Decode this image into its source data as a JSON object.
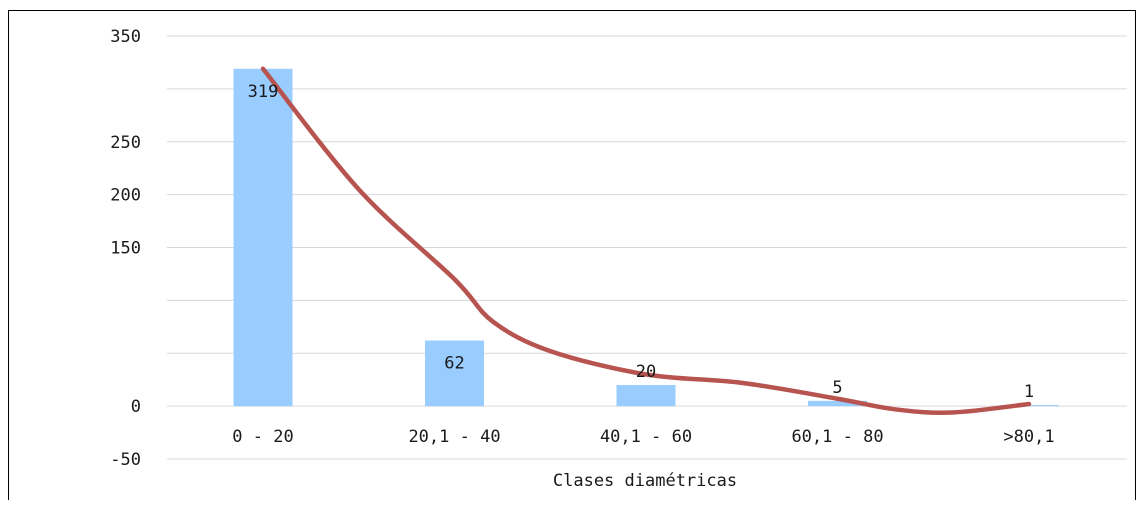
{
  "chart_data": {
    "type": "bar",
    "categories": [
      "0 - 20",
      "20,1 - 40",
      "40,1 - 60",
      "60,1 - 80",
      ">80,1"
    ],
    "values": [
      319,
      62,
      20,
      5,
      1
    ],
    "value_labels": [
      "319",
      "62",
      "20",
      "5",
      "1"
    ],
    "y_ticks": [
      "350",
      "250",
      "200",
      "150",
      "0",
      "-50"
    ],
    "y_tick_values": [
      350,
      250,
      200,
      150,
      0,
      -50
    ],
    "gridlines": [
      -50,
      0,
      50,
      100,
      150,
      200,
      250,
      300,
      350
    ],
    "ylim": [
      -50,
      350
    ],
    "xlabel": "Clases diamétricas",
    "ylabel": "",
    "title": "",
    "grid": true,
    "legend": "none",
    "trendline": {
      "type": "polynomial",
      "points": [
        [
          0,
          319
        ],
        [
          0.5,
          205
        ],
        [
          1,
          120
        ],
        [
          1.2,
          80
        ],
        [
          1.5,
          52
        ],
        [
          2,
          30
        ],
        [
          2.5,
          22
        ],
        [
          3,
          7
        ],
        [
          3.3,
          -3
        ],
        [
          3.6,
          -6
        ],
        [
          4,
          2
        ]
      ]
    },
    "colors": {
      "bar": "#99CCFF",
      "trendline": "#B85450",
      "grid": "#D9D9D9"
    }
  }
}
